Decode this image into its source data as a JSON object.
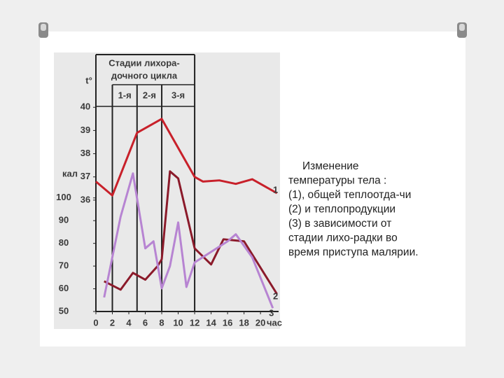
{
  "chart_data": {
    "type": "line",
    "y_label": "t°",
    "y2_label": "кал",
    "x_label": "час",
    "stage_title": [
      "Стадии лихора-",
      "дочного цикла"
    ],
    "stages": [
      {
        "label": "1-я",
        "start": 2,
        "end": 5
      },
      {
        "label": "2-я",
        "start": 5,
        "end": 8
      },
      {
        "label": "3-я",
        "start": 8,
        "end": 12
      }
    ],
    "xlim": [
      0,
      22.2
    ],
    "xticks": [
      0,
      2,
      4,
      6,
      8,
      10,
      12,
      14,
      16,
      18,
      20
    ],
    "ylim": [
      31.2,
      40.4
    ],
    "yticks": [
      36,
      37,
      38,
      39,
      40
    ],
    "y2lim": [
      50,
      144
    ],
    "y2ticks": [
      50,
      60,
      70,
      80,
      90,
      100
    ],
    "series": [
      {
        "name": "1",
        "color": "#c8202a",
        "x": [
          0,
          2,
          5,
          8,
          12,
          13,
          15,
          17,
          19,
          22
        ],
        "values": [
          36.8,
          36.2,
          38.9,
          39.5,
          37.0,
          36.8,
          36.85,
          36.7,
          36.9,
          36.3
        ]
      },
      {
        "name": "2",
        "color": "#8b1a2a",
        "axis": "y2",
        "x": [
          1,
          3,
          4.5,
          6,
          7.5,
          8,
          9,
          10,
          12,
          14,
          15.5,
          18,
          22
        ],
        "values": [
          63.3,
          59.6,
          67,
          64,
          70,
          73,
          111.7,
          108.6,
          77.8,
          70.7,
          81.8,
          80.9,
          57.7
        ]
      },
      {
        "name": "3",
        "color": "#b784d2",
        "axis": "y2",
        "x": [
          1,
          3,
          4.5,
          6,
          7,
          8,
          9,
          10,
          11,
          12,
          16,
          17,
          19,
          21.5
        ],
        "values": [
          56.2,
          91.7,
          110.8,
          77.8,
          80.9,
          60.2,
          70,
          89.2,
          60.8,
          71.6,
          80.9,
          84,
          73.8,
          51.5
        ]
      }
    ]
  },
  "caption": [
    "Изменение",
    "температуры тела :",
    "(1), общей теплоотда-чи",
    "(2) и теплопродукции",
    "(3) в зависимости от",
    "стадии лихо-радки во",
    "время приступа малярии."
  ]
}
